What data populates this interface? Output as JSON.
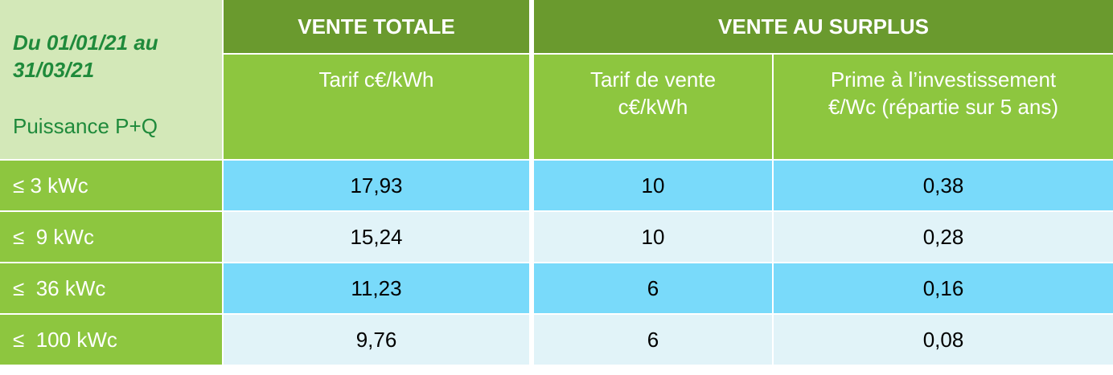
{
  "header": {
    "period": [
      "Du 01/01/21 au",
      "31/03/21"
    ],
    "power_label": "Puissance P+Q",
    "groups": [
      "VENTE TOTALE",
      "VENTE AU SURPLUS"
    ],
    "columns": [
      [
        "Tarif c€/kWh"
      ],
      [
        "Tarif de vente",
        "c€/kWh"
      ],
      [
        "Prime à l’investissement",
        "€/Wc (répartie sur 5 ans)"
      ]
    ]
  },
  "table": {
    "rows": [
      [
        "≤ 3 kWc",
        "17,93",
        "10",
        "0,38"
      ],
      [
        "≤  9 kWc",
        "15,24",
        "10",
        "0,28"
      ],
      [
        "≤  36 kWc",
        "11,23",
        "6",
        "0,16"
      ],
      [
        "≤  100 kWc",
        "9,76",
        "6",
        "0,08"
      ]
    ]
  }
}
